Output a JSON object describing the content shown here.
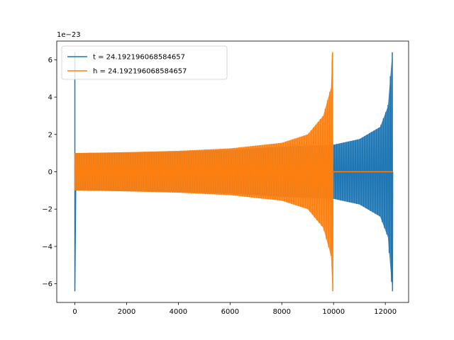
{
  "chart_data": {
    "type": "line",
    "title": "",
    "xlabel": "",
    "ylabel": "",
    "y_scale_label": "1e−23",
    "xlim": [
      -700,
      12900
    ],
    "ylim": [
      -7.0,
      7.0
    ],
    "x_ticks": [
      0,
      2000,
      4000,
      6000,
      8000,
      10000,
      12000
    ],
    "y_ticks": [
      -6,
      -4,
      -2,
      0,
      2,
      4,
      6
    ],
    "x_tick_labels": [
      "0",
      "2000",
      "4000",
      "6000",
      "8000",
      "10000",
      "12000"
    ],
    "y_tick_labels": [
      "−6",
      "−4",
      "−2",
      "0",
      "2",
      "4",
      "6"
    ],
    "legend_position": "upper-left",
    "grid": false,
    "series": [
      {
        "name": "t = 24.192196068584657",
        "color": "#1f77b4",
        "description": "chirp waveform: spike to ±6.4 at x=0, oscillation envelope ~±1.0 rising to ±6.4 at x≈12270, ends x≈12290",
        "x_start": 0,
        "x_end": 12290,
        "x_merger": 12270,
        "initial_spike": [
          -6.4,
          6.4
        ],
        "envelope": [
          [
            0,
            1.0
          ],
          [
            2000,
            1.03
          ],
          [
            4000,
            1.08
          ],
          [
            6000,
            1.17
          ],
          [
            8000,
            1.35
          ],
          [
            10000,
            1.45
          ],
          [
            11000,
            1.75
          ],
          [
            11800,
            2.4
          ],
          [
            12100,
            3.5
          ],
          [
            12270,
            6.4
          ]
        ]
      },
      {
        "name": "h = 24.192196068584657",
        "color": "#ff7f0e",
        "description": "chirp waveform: spike at x=0, envelope ~±1.0 rising to ±6.4 at x≈9960, flat at 0 afterwards",
        "x_start": 0,
        "x_end": 12290,
        "x_merger": 9960,
        "initial_spike": [
          -1.0,
          1.0
        ],
        "envelope": [
          [
            0,
            1.0
          ],
          [
            2000,
            1.05
          ],
          [
            4000,
            1.12
          ],
          [
            6000,
            1.25
          ],
          [
            8000,
            1.55
          ],
          [
            9000,
            2.0
          ],
          [
            9600,
            3.0
          ],
          [
            9900,
            4.5
          ],
          [
            9960,
            6.4
          ]
        ]
      }
    ]
  }
}
